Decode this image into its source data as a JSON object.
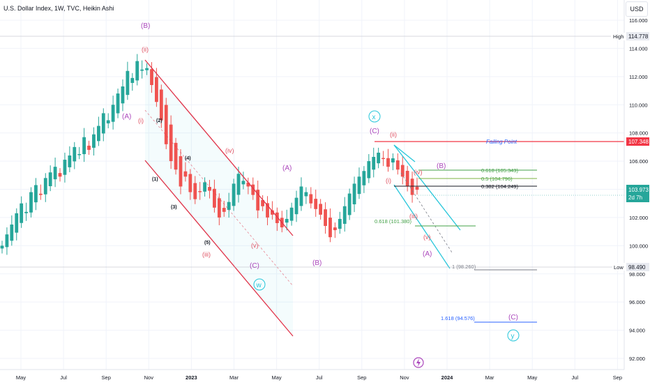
{
  "header": {
    "title": "U.S. Dollar Index, 1W, TVC, Heikin Ashi",
    "currency": "USD"
  },
  "colors": {
    "up": "#26a69a",
    "down": "#ef5350",
    "wave": "#ab47bc",
    "minor": "#e05465",
    "channel_red": "#e0344a",
    "channel_cyan": "#26c6da",
    "fail": "#f23645",
    "fib_green": "#43a047",
    "fib_blue": "#2962ff",
    "grid": "#f0f3fa"
  },
  "axis": {
    "y_ticks": [
      "116.000",
      "114.000",
      "112.000",
      "110.000",
      "108.000",
      "106.000",
      "104.000",
      "102.000",
      "100.000",
      "98.000",
      "96.000",
      "94.000",
      "92.000"
    ],
    "x_ticks": [
      "May",
      "Jul",
      "Sep",
      "Nov",
      "2023",
      "Mar",
      "May",
      "Jul",
      "Sep",
      "Nov",
      "2024",
      "Mar",
      "May",
      "Jul",
      "Sep"
    ],
    "high_label": "High",
    "high_value": "114.778",
    "low_label": "Low",
    "low_value": "98.490",
    "fail_value": "107.348",
    "last_value": "103.973",
    "countdown": "2d 7h"
  },
  "annotations": {
    "failing_point": "Failing Point",
    "fib_618_up": "0.618 (105.343)",
    "fib_5": "0.5 (104.796)",
    "fib_382": "0.382 (104.249)",
    "fib_618_low": "0.618 (101.380)",
    "fib_1": "1 (98.260)",
    "fib_1618": "1.618 (94.576)"
  },
  "wave_labels": {
    "B_top": "(B)",
    "A_left": "(A)",
    "ii_top": "(ii)",
    "i_left": "(i)",
    "n2": "(2)",
    "n4": "(4)",
    "n1": "(1)",
    "n3": "(3)",
    "n5": "(5)",
    "iii_left": "(iii)",
    "iv_left": "(iv)",
    "v_left": "(v)",
    "C_left": "(C)",
    "w": "w",
    "A_mid": "(A)",
    "B_mid": "(B)",
    "x": "x",
    "C_mid": "(C)",
    "ii_right": "(ii)",
    "i_right": "(i)",
    "iv_right": "(iv)",
    "iii_right": "(iii)",
    "v_right": "(v)",
    "A_right": "(A)",
    "B_right": "(B)",
    "C_right": "(C)",
    "y": "y"
  },
  "chart_data": {
    "type": "candlestick",
    "title": "U.S. Dollar Index, 1W, TVC, Heikin Ashi",
    "ylim": [
      91.4,
      116.5
    ],
    "x_axis": "weekly, Apr 2022 - Sep 2024",
    "close_series": [
      100.0,
      100.8,
      101.5,
      102.3,
      103.0,
      102.4,
      103.8,
      104.3,
      103.6,
      104.8,
      105.2,
      105.6,
      104.9,
      106.1,
      106.4,
      107.0,
      106.5,
      107.7,
      106.8,
      107.9,
      108.5,
      109.4,
      108.9,
      110.0,
      110.8,
      111.3,
      112.4,
      111.9,
      113.1,
      112.5,
      112.6,
      111.4,
      110.2,
      108.9,
      107.2,
      106.0,
      105.4,
      104.2,
      104.9,
      103.8,
      103.3,
      103.8,
      104.5,
      103.9,
      102.7,
      102.0,
      102.4,
      103.1,
      104.4,
      105.1,
      104.6,
      104.2,
      103.6,
      102.5,
      102.8,
      102.0,
      102.2,
      101.6,
      101.3,
      101.9,
      102.7,
      103.4,
      104.2,
      103.8,
      103.0,
      102.6,
      102.2,
      101.4,
      100.6,
      101.1,
      101.9,
      102.8,
      103.7,
      104.4,
      104.9,
      105.3,
      106.0,
      106.3,
      106.6,
      106.2,
      105.6,
      106.2,
      105.4,
      104.9,
      104.2,
      103.6,
      103.97
    ],
    "levels": [
      {
        "name": "Failing Point",
        "value": 107.348
      },
      {
        "name": "0.618",
        "value": 105.343
      },
      {
        "name": "0.5",
        "value": 104.796
      },
      {
        "name": "0.382",
        "value": 104.249
      },
      {
        "name": "0.618",
        "value": 101.38
      },
      {
        "name": "1",
        "value": 98.26
      },
      {
        "name": "1.618",
        "value": 94.576
      }
    ],
    "high": 114.778,
    "low": 98.49,
    "last": 103.973
  }
}
